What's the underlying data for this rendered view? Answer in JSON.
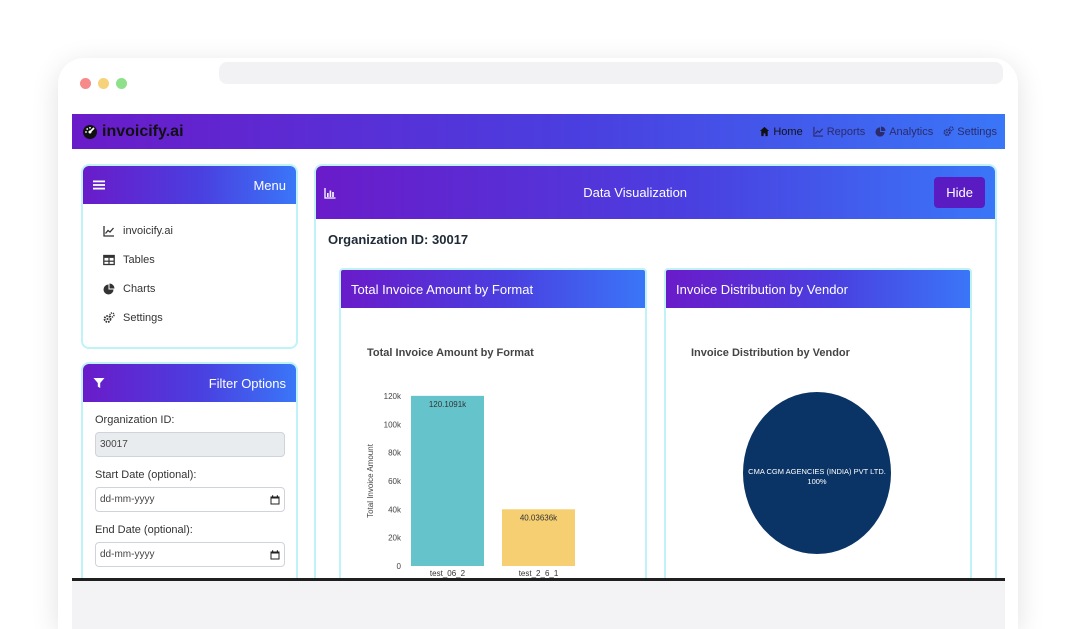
{
  "brand": {
    "name": "invoicify.ai"
  },
  "nav": [
    {
      "label": "Home",
      "icon": "home-icon",
      "active": true
    },
    {
      "label": "Reports",
      "icon": "line-chart-icon",
      "active": false
    },
    {
      "label": "Analytics",
      "icon": "pie-chart-icon",
      "active": false
    },
    {
      "label": "Settings",
      "icon": "gears-icon",
      "active": false
    }
  ],
  "menu": {
    "title": "Menu",
    "items": [
      {
        "label": "invoicify.ai",
        "icon": "line-chart-icon"
      },
      {
        "label": "Tables",
        "icon": "table-icon"
      },
      {
        "label": "Charts",
        "icon": "pie-chart-icon"
      },
      {
        "label": "Settings",
        "icon": "gears-icon"
      }
    ]
  },
  "filter": {
    "title": "Filter Options",
    "org_label": "Organization ID:",
    "org_value": "30017",
    "start_label": "Start Date (optional):",
    "start_placeholder": "dd-mm-yyyy",
    "end_label": "End Date (optional):",
    "end_placeholder": "dd-mm-yyyy"
  },
  "viz": {
    "title": "Data Visualization",
    "hide_label": "Hide",
    "org_heading": "Organization ID: 30017",
    "left_card_title": "Total Invoice Amount by Format",
    "right_card_title": "Invoice Distribution by Vendor"
  },
  "chart_data": [
    {
      "type": "bar",
      "title": "Total Invoice Amount by Format",
      "xlabel": "",
      "ylabel": "Total Invoice Amount",
      "categories": [
        "test_06_2",
        "test_2_6_1"
      ],
      "values": [
        120109.1,
        40036.36
      ],
      "data_labels": [
        "120.1091k",
        "40.03636k"
      ],
      "colors": [
        "#65c4cb",
        "#f5cf71"
      ],
      "yticks": [
        "0",
        "20k",
        "40k",
        "60k",
        "80k",
        "100k",
        "120k"
      ],
      "ylim": [
        0,
        120000
      ],
      "grid": false
    },
    {
      "type": "pie",
      "title": "Invoice Distribution by Vendor",
      "labels": [
        "CMA CGM AGENCIES (INDIA) PVT LTD."
      ],
      "values": [
        100
      ],
      "data_labels": [
        "100%"
      ],
      "colors": [
        "#0b3466"
      ]
    }
  ]
}
